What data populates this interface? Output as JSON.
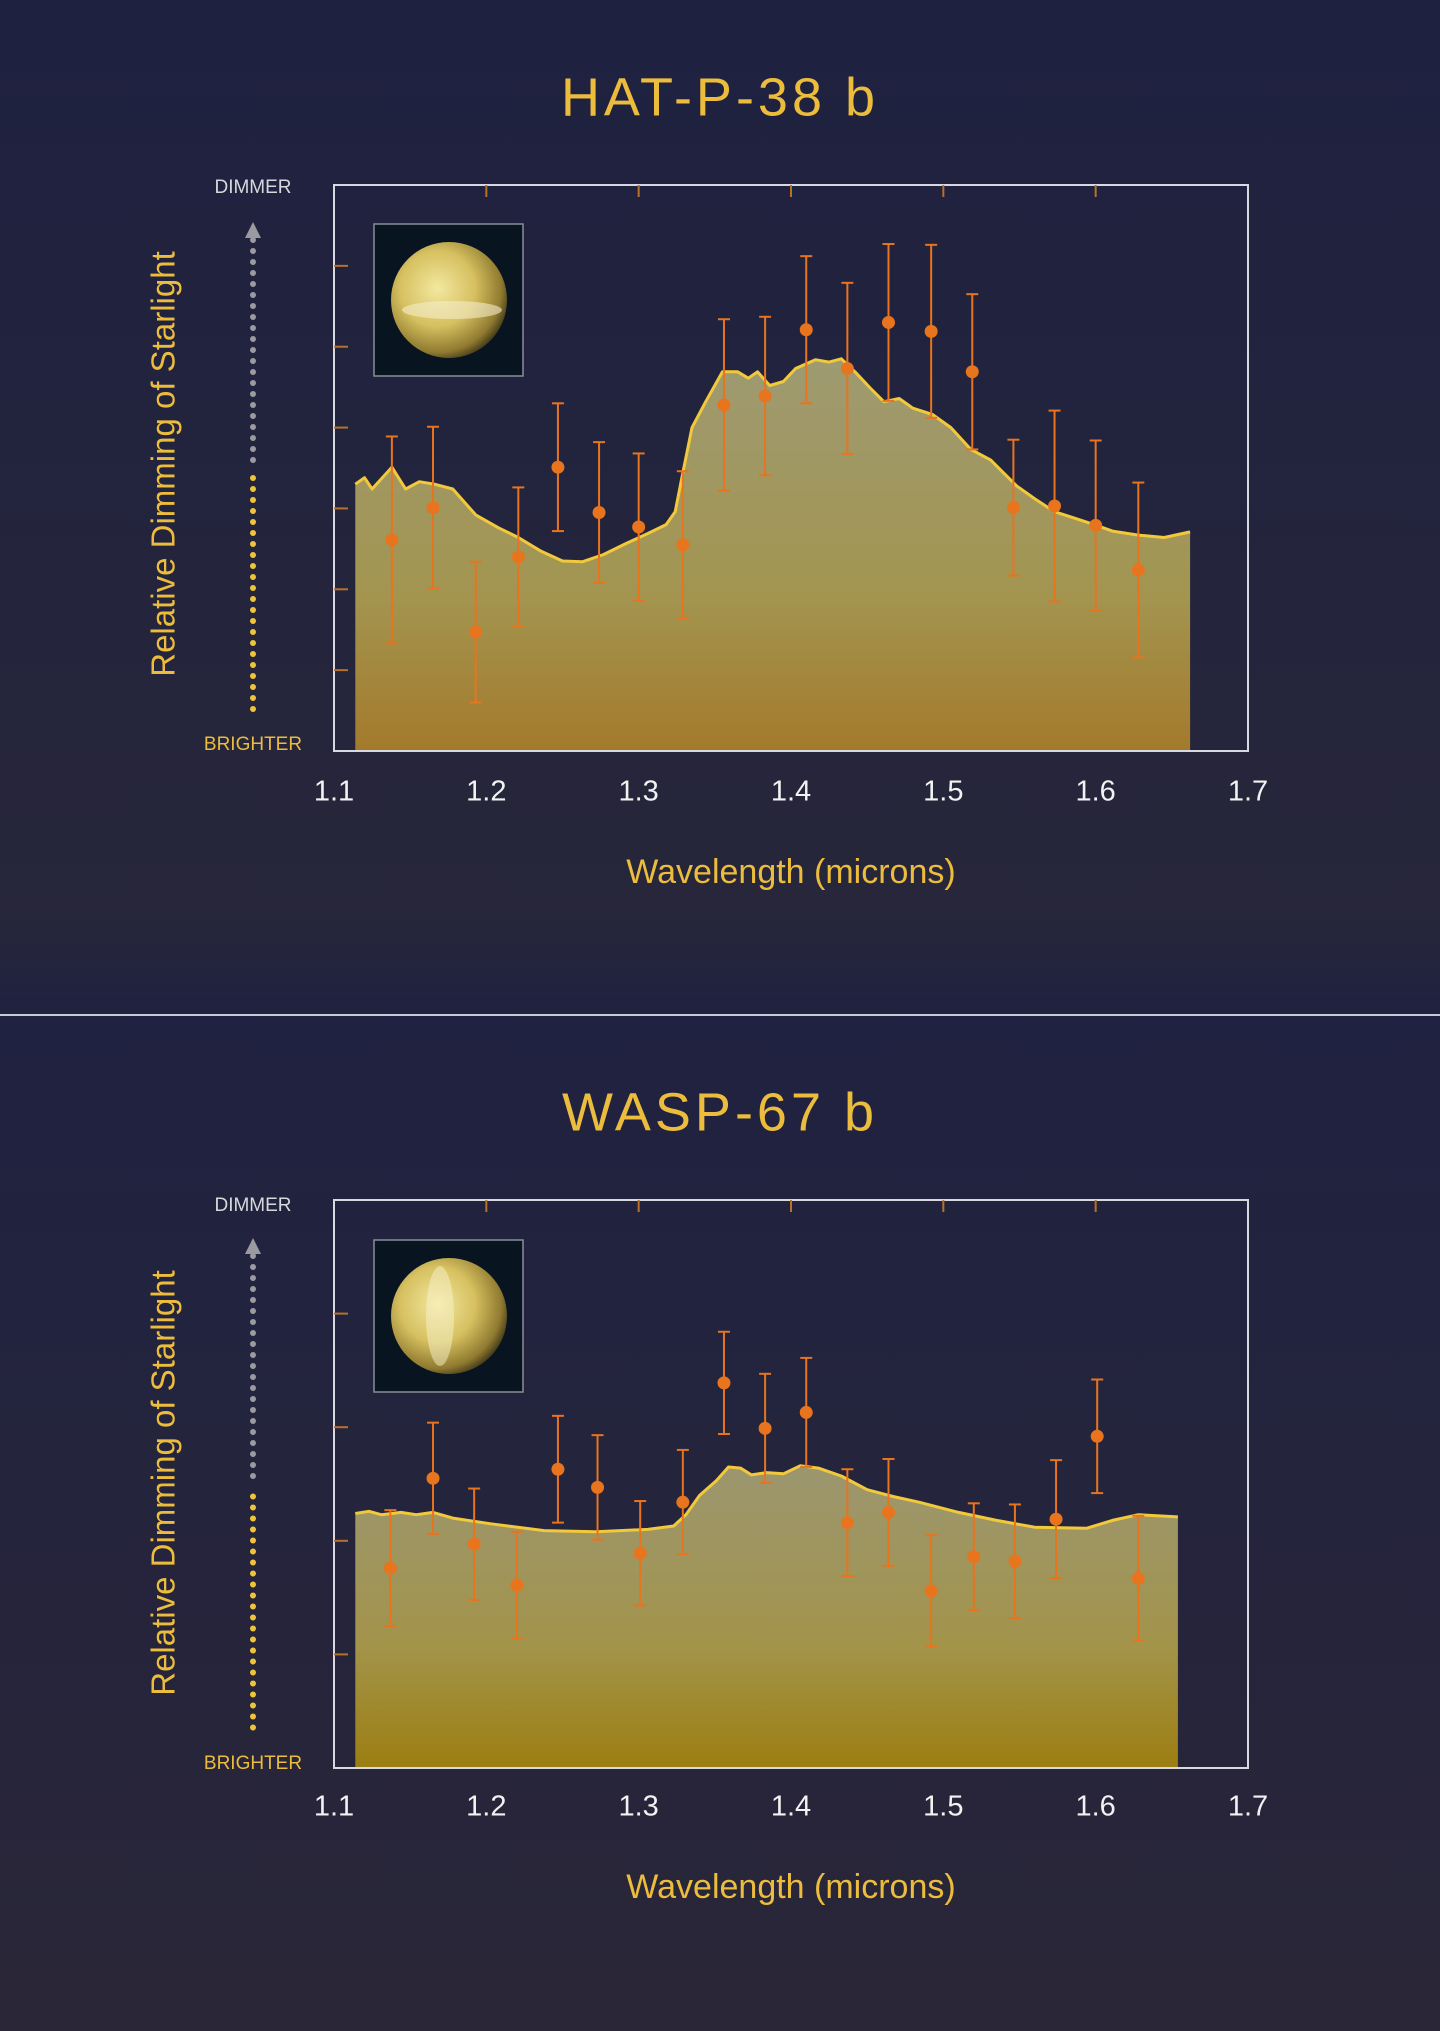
{
  "chart_data": [
    {
      "type": "spectrum",
      "title": "HAT-P-38 b",
      "xlabel": "Wavelength (microns)",
      "ylabel": "Relative Dimming of Starlight",
      "y_top_label": "DIMMER",
      "y_bottom_label": "BRIGHTER",
      "xlim": [
        1.1,
        1.7
      ],
      "xticks": [
        1.1,
        1.2,
        1.3,
        1.4,
        1.5,
        1.6,
        1.7
      ],
      "ylim": [
        0,
        7
      ],
      "yticks": [
        1,
        2,
        3,
        4,
        5,
        6
      ],
      "model": {
        "color": "#f2c93a",
        "x": [
          1.114,
          1.12,
          1.125,
          1.138,
          1.147,
          1.156,
          1.166,
          1.178,
          1.193,
          1.208,
          1.221,
          1.236,
          1.25,
          1.263,
          1.277,
          1.291,
          1.306,
          1.318,
          1.324,
          1.329,
          1.335,
          1.344,
          1.355,
          1.365,
          1.372,
          1.378,
          1.386,
          1.395,
          1.403,
          1.416,
          1.425,
          1.433,
          1.442,
          1.452,
          1.461,
          1.471,
          1.48,
          1.493,
          1.505,
          1.518,
          1.531,
          1.548,
          1.56,
          1.573,
          1.586,
          1.599,
          1.611,
          1.628,
          1.645,
          1.662
        ],
        "values": [
          3.3,
          3.38,
          3.24,
          3.51,
          3.24,
          3.33,
          3.3,
          3.24,
          2.92,
          2.76,
          2.64,
          2.47,
          2.35,
          2.34,
          2.43,
          2.56,
          2.69,
          2.8,
          2.96,
          3.44,
          4.0,
          4.32,
          4.69,
          4.69,
          4.61,
          4.69,
          4.52,
          4.57,
          4.73,
          4.84,
          4.81,
          4.85,
          4.69,
          4.49,
          4.32,
          4.36,
          4.24,
          4.16,
          4.0,
          3.73,
          3.6,
          3.28,
          3.12,
          2.96,
          2.88,
          2.8,
          2.72,
          2.67,
          2.64,
          2.71
        ]
      },
      "observations": {
        "color": "#e8741e",
        "x": [
          1.138,
          1.165,
          1.193,
          1.221,
          1.247,
          1.274,
          1.3,
          1.329,
          1.356,
          1.383,
          1.41,
          1.437,
          1.464,
          1.492,
          1.519,
          1.546,
          1.573,
          1.6,
          1.628
        ],
        "values": [
          2.61,
          3.01,
          1.47,
          2.4,
          3.51,
          2.95,
          2.77,
          2.55,
          4.28,
          4.39,
          5.21,
          4.73,
          5.3,
          5.19,
          4.69,
          3.01,
          3.03,
          2.79,
          2.24
        ],
        "errors": [
          1.28,
          1.0,
          0.87,
          0.86,
          0.79,
          0.87,
          0.91,
          0.91,
          1.06,
          0.98,
          0.91,
          1.06,
          0.97,
          1.07,
          0.96,
          0.84,
          1.18,
          1.05,
          1.08
        ]
      }
    },
    {
      "type": "spectrum",
      "title": "WASP-67 b",
      "xlabel": "Wavelength (microns)",
      "ylabel": "Relative Dimming of Starlight",
      "y_top_label": "DIMMER",
      "y_bottom_label": "BRIGHTER",
      "xlim": [
        1.1,
        1.7
      ],
      "xticks": [
        1.1,
        1.2,
        1.3,
        1.4,
        1.5,
        1.6,
        1.7
      ],
      "ylim": [
        0,
        5
      ],
      "yticks": [
        1,
        2,
        3,
        4
      ],
      "model": {
        "color": "#f2c93a",
        "x": [
          1.114,
          1.123,
          1.131,
          1.144,
          1.154,
          1.165,
          1.178,
          1.203,
          1.238,
          1.272,
          1.306,
          1.323,
          1.331,
          1.34,
          1.351,
          1.359,
          1.367,
          1.374,
          1.384,
          1.395,
          1.406,
          1.418,
          1.433,
          1.45,
          1.467,
          1.484,
          1.51,
          1.535,
          1.56,
          1.594,
          1.611,
          1.628,
          1.654
        ],
        "values": [
          2.24,
          2.26,
          2.23,
          2.25,
          2.23,
          2.25,
          2.2,
          2.15,
          2.09,
          2.08,
          2.1,
          2.13,
          2.23,
          2.4,
          2.53,
          2.65,
          2.64,
          2.58,
          2.6,
          2.59,
          2.66,
          2.64,
          2.57,
          2.45,
          2.39,
          2.34,
          2.25,
          2.18,
          2.12,
          2.11,
          2.18,
          2.23,
          2.21
        ]
      },
      "observations": {
        "color": "#e8741e",
        "x": [
          1.137,
          1.165,
          1.192,
          1.22,
          1.247,
          1.273,
          1.301,
          1.329,
          1.356,
          1.383,
          1.41,
          1.437,
          1.464,
          1.492,
          1.52,
          1.547,
          1.574,
          1.601,
          1.628
        ],
        "values": [
          1.76,
          2.55,
          1.97,
          1.61,
          2.63,
          2.47,
          1.89,
          2.34,
          3.39,
          2.99,
          3.13,
          2.16,
          2.25,
          1.56,
          1.86,
          1.82,
          2.19,
          2.92,
          1.67
        ],
        "errors": [
          0.51,
          0.49,
          0.49,
          0.47,
          0.47,
          0.46,
          0.46,
          0.46,
          0.45,
          0.48,
          0.48,
          0.47,
          0.47,
          0.49,
          0.47,
          0.5,
          0.52,
          0.5,
          0.55
        ]
      }
    }
  ]
}
